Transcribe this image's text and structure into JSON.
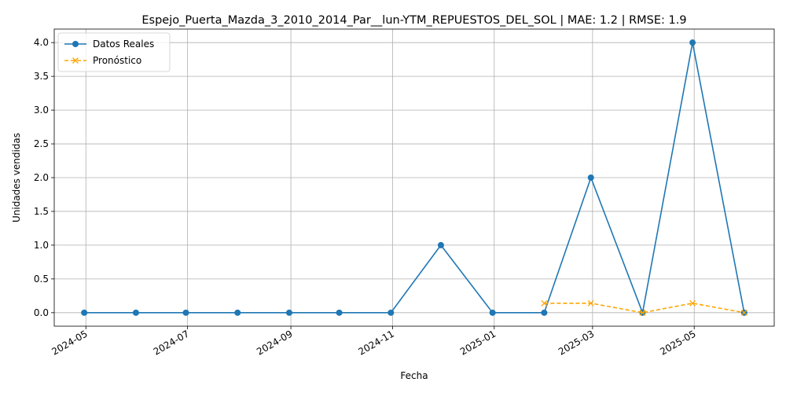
{
  "chart_data": {
    "type": "line",
    "title": "Espejo_Puerta_Mazda_3_2010_2014_Par__lun-YTM_REPUESTOS_DEL_SOL | MAE: 1.2 | RMSE: 1.9",
    "xlabel": "Fecha",
    "ylabel": "Unidades vendidas",
    "ylim": [
      -0.2,
      4.2
    ],
    "grid": true,
    "legend_position": "top-left",
    "x_ticks": [
      {
        "date": "2024-05-01",
        "label": "2024-05"
      },
      {
        "date": "2024-07-01",
        "label": "2024-07"
      },
      {
        "date": "2024-09-01",
        "label": "2024-09"
      },
      {
        "date": "2024-11-01",
        "label": "2024-11"
      },
      {
        "date": "2025-01-01",
        "label": "2025-01"
      },
      {
        "date": "2025-03-01",
        "label": "2025-03"
      },
      {
        "date": "2025-05-01",
        "label": "2025-05"
      }
    ],
    "y_ticks": [
      {
        "value": 0,
        "label": "0.0"
      },
      {
        "value": 0.5,
        "label": "0.5"
      },
      {
        "value": 1,
        "label": "1.0"
      },
      {
        "value": 1.5,
        "label": "1.5"
      },
      {
        "value": 2,
        "label": "2.0"
      },
      {
        "value": 2.5,
        "label": "2.5"
      },
      {
        "value": 3,
        "label": "3.0"
      },
      {
        "value": 3.5,
        "label": "3.5"
      },
      {
        "value": 4,
        "label": "4.0"
      }
    ],
    "series": [
      {
        "name": "Datos Reales",
        "color": "#1f77b4",
        "style": "solid",
        "marker": "circle",
        "x": [
          "2024-04-30",
          "2024-05-31",
          "2024-06-30",
          "2024-07-31",
          "2024-08-31",
          "2024-09-30",
          "2024-10-31",
          "2024-11-30",
          "2024-12-31",
          "2025-01-31",
          "2025-02-28",
          "2025-03-31",
          "2025-04-30",
          "2025-05-31"
        ],
        "values": [
          0,
          0,
          0,
          0,
          0,
          0,
          0,
          1,
          0,
          0,
          2,
          0,
          4,
          0
        ]
      },
      {
        "name": "Pronóstico",
        "color": "#ffa500",
        "style": "dashed",
        "marker": "x",
        "x": [
          "2025-01-31",
          "2025-02-28",
          "2025-03-31",
          "2025-04-30",
          "2025-05-31"
        ],
        "values": [
          0.14,
          0.14,
          0,
          0.14,
          0
        ]
      }
    ]
  }
}
